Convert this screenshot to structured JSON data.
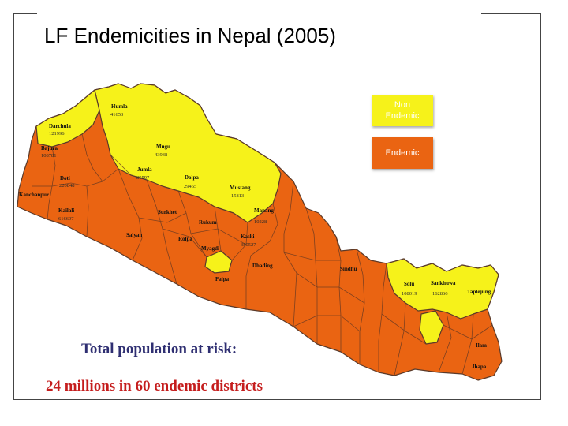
{
  "slide": {
    "title": "LF Endemicities in Nepal (2005)"
  },
  "legend": {
    "non_endemic": {
      "line1": "Non",
      "line2": "Endemic",
      "color": "#f6f21a"
    },
    "endemic": {
      "label": "Endemic",
      "color": "#ea6412"
    }
  },
  "colors": {
    "endemic": "#ea6412",
    "non_endemic": "#f6f21a",
    "border": "#5a3a2a",
    "title_navy": "#2f2f72",
    "highlight_red": "#c51d1d"
  },
  "summary": {
    "line1": "Total population at risk:",
    "line2": "24 millions in 60 endemic districts"
  },
  "districts": [
    {
      "name": "Humla",
      "population": "41653",
      "status": "non-endemic"
    },
    {
      "name": "Mugu",
      "population": "43938",
      "status": "non-endemic"
    },
    {
      "name": "Jumla",
      "population": "89597",
      "status": "non-endemic"
    },
    {
      "name": "Dolpa",
      "population": "29465",
      "status": "non-endemic"
    },
    {
      "name": "Mustang",
      "population": "15813",
      "status": "non-endemic"
    },
    {
      "name": "Manang",
      "population": "10228",
      "status": "non-endemic"
    },
    {
      "name": "Darchula",
      "population": "121996",
      "status": "non-endemic"
    },
    {
      "name": "Solu",
      "population": "108019",
      "status": "non-endemic"
    },
    {
      "name": "Sankhuwa",
      "population": "162866",
      "status": "non-endemic"
    },
    {
      "name": "Taplejung",
      "population": "",
      "status": "non-endemic"
    },
    {
      "name": "Kanchanpur",
      "population": "",
      "status": "endemic"
    },
    {
      "name": "Kailali",
      "population": "616697",
      "status": "endemic"
    },
    {
      "name": "Doti",
      "population": "220848",
      "status": "endemic"
    },
    {
      "name": "Bajura",
      "population": "108781",
      "status": "endemic"
    },
    {
      "name": "Surkhet",
      "population": "",
      "status": "endemic"
    },
    {
      "name": "Salyan",
      "population": "",
      "status": "endemic"
    },
    {
      "name": "Rukum",
      "population": "",
      "status": "endemic"
    },
    {
      "name": "Rolpa",
      "population": "",
      "status": "endemic"
    },
    {
      "name": "Myagdi",
      "population": "",
      "status": "endemic"
    },
    {
      "name": "Kaski",
      "population": "380527",
      "status": "endemic"
    },
    {
      "name": "Palpa",
      "population": "",
      "status": "endemic"
    },
    {
      "name": "Dhading",
      "population": "",
      "status": "endemic"
    },
    {
      "name": "Sindhu",
      "population": "",
      "status": "endemic"
    },
    {
      "name": "Ilam",
      "population": "",
      "status": "endemic"
    },
    {
      "name": "Jhapa",
      "population": "",
      "status": "endemic"
    }
  ]
}
